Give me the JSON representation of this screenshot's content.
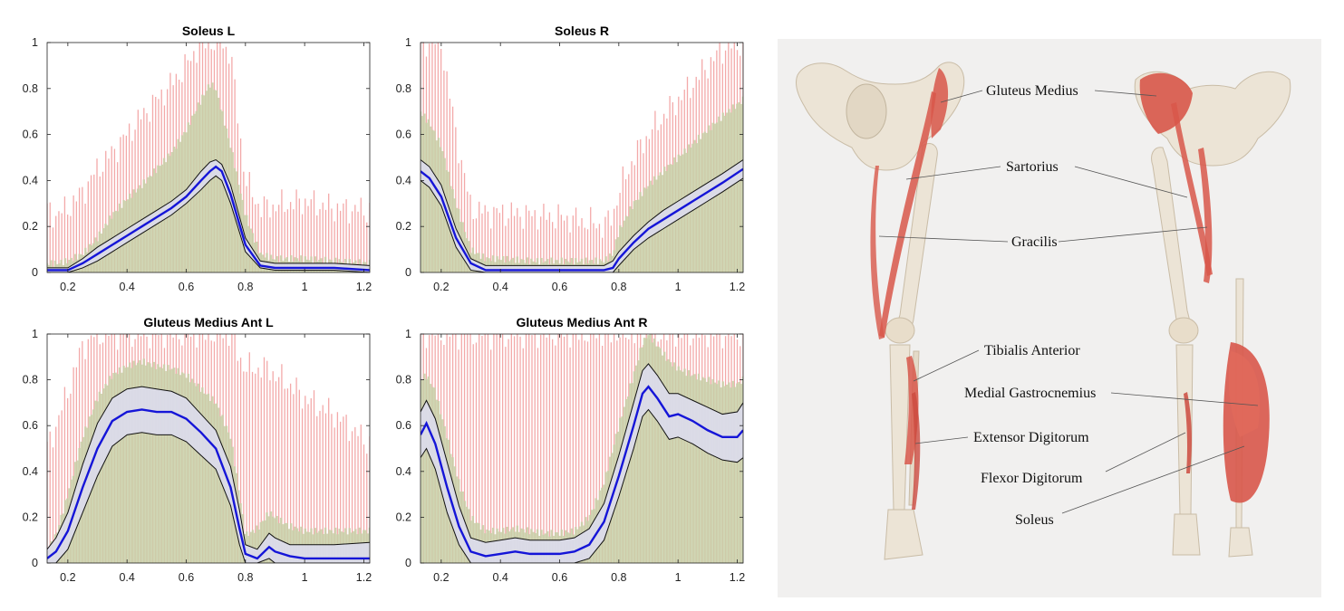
{
  "chart_data": [
    {
      "type": "line",
      "title": "Soleus L",
      "xlim": [
        0.13,
        1.22
      ],
      "ylim": [
        0,
        1
      ],
      "xticks": [
        0.2,
        0.4,
        0.6,
        0.8,
        1,
        1.2
      ],
      "yticks": [
        0,
        0.2,
        0.4,
        0.6,
        0.8,
        1
      ],
      "x": [
        0.13,
        0.16,
        0.2,
        0.25,
        0.3,
        0.35,
        0.4,
        0.45,
        0.5,
        0.55,
        0.6,
        0.65,
        0.68,
        0.7,
        0.72,
        0.75,
        0.8,
        0.85,
        0.9,
        1.0,
        1.1,
        1.22
      ],
      "series": [
        {
          "role": "mean",
          "values": [
            0.01,
            0.01,
            0.01,
            0.04,
            0.08,
            0.12,
            0.16,
            0.2,
            0.24,
            0.28,
            0.33,
            0.4,
            0.44,
            0.46,
            0.44,
            0.34,
            0.12,
            0.03,
            0.02,
            0.02,
            0.02,
            0.01
          ]
        },
        {
          "role": "upper",
          "values": [
            0.02,
            0.02,
            0.02,
            0.06,
            0.11,
            0.15,
            0.19,
            0.23,
            0.27,
            0.31,
            0.36,
            0.44,
            0.48,
            0.49,
            0.47,
            0.38,
            0.15,
            0.05,
            0.04,
            0.04,
            0.04,
            0.03
          ]
        },
        {
          "role": "lower",
          "values": [
            0.0,
            0.0,
            0.0,
            0.02,
            0.05,
            0.09,
            0.13,
            0.17,
            0.21,
            0.25,
            0.3,
            0.36,
            0.4,
            0.42,
            0.4,
            0.3,
            0.09,
            0.02,
            0.01,
            0.01,
            0.01,
            0.0
          ]
        },
        {
          "role": "range",
          "values": [
            0.04,
            0.04,
            0.05,
            0.08,
            0.15,
            0.25,
            0.32,
            0.38,
            0.45,
            0.52,
            0.62,
            0.75,
            0.82,
            0.8,
            0.7,
            0.55,
            0.25,
            0.08,
            0.06,
            0.06,
            0.05,
            0.04
          ]
        },
        {
          "role": "envelope",
          "values": [
            0.27,
            0.25,
            0.28,
            0.35,
            0.45,
            0.52,
            0.6,
            0.68,
            0.75,
            0.82,
            0.9,
            1.0,
            1.0,
            1.0,
            1.0,
            0.95,
            0.4,
            0.28,
            0.29,
            0.31,
            0.28,
            0.27
          ]
        }
      ]
    },
    {
      "type": "line",
      "title": "Soleus R",
      "xlim": [
        0.13,
        1.22
      ],
      "ylim": [
        0,
        1
      ],
      "xticks": [
        0.2,
        0.4,
        0.6,
        0.8,
        1,
        1.2
      ],
      "yticks": [
        0,
        0.2,
        0.4,
        0.6,
        0.8,
        1
      ],
      "x": [
        0.13,
        0.16,
        0.2,
        0.25,
        0.3,
        0.35,
        0.4,
        0.5,
        0.6,
        0.7,
        0.75,
        0.78,
        0.8,
        0.85,
        0.9,
        0.95,
        1.0,
        1.05,
        1.1,
        1.15,
        1.22
      ],
      "series": [
        {
          "role": "mean",
          "values": [
            0.44,
            0.41,
            0.33,
            0.15,
            0.04,
            0.01,
            0.01,
            0.01,
            0.01,
            0.01,
            0.01,
            0.02,
            0.06,
            0.13,
            0.19,
            0.23,
            0.27,
            0.31,
            0.35,
            0.39,
            0.45
          ]
        },
        {
          "role": "upper",
          "values": [
            0.49,
            0.46,
            0.38,
            0.19,
            0.06,
            0.03,
            0.03,
            0.03,
            0.03,
            0.03,
            0.03,
            0.05,
            0.09,
            0.16,
            0.22,
            0.27,
            0.31,
            0.35,
            0.39,
            0.43,
            0.49
          ]
        },
        {
          "role": "lower",
          "values": [
            0.4,
            0.37,
            0.29,
            0.11,
            0.01,
            0.0,
            0.0,
            0.0,
            0.0,
            0.0,
            0.0,
            0.0,
            0.03,
            0.1,
            0.15,
            0.19,
            0.23,
            0.27,
            0.31,
            0.35,
            0.41
          ]
        },
        {
          "role": "range",
          "values": [
            0.7,
            0.65,
            0.55,
            0.3,
            0.1,
            0.06,
            0.06,
            0.05,
            0.05,
            0.05,
            0.05,
            0.08,
            0.18,
            0.3,
            0.38,
            0.44,
            0.5,
            0.56,
            0.62,
            0.68,
            0.75
          ]
        },
        {
          "role": "envelope",
          "values": [
            1.0,
            1.0,
            1.0,
            0.6,
            0.28,
            0.26,
            0.26,
            0.25,
            0.24,
            0.22,
            0.2,
            0.25,
            0.35,
            0.5,
            0.6,
            0.68,
            0.75,
            0.82,
            0.9,
            0.97,
            1.0
          ]
        }
      ]
    },
    {
      "type": "line",
      "title": "Gluteus Medius Ant L",
      "xlim": [
        0.13,
        1.22
      ],
      "ylim": [
        0,
        1
      ],
      "xticks": [
        0.2,
        0.4,
        0.6,
        0.8,
        1,
        1.2
      ],
      "yticks": [
        0,
        0.2,
        0.4,
        0.6,
        0.8,
        1
      ],
      "x": [
        0.13,
        0.16,
        0.2,
        0.25,
        0.3,
        0.35,
        0.4,
        0.45,
        0.5,
        0.55,
        0.6,
        0.65,
        0.7,
        0.75,
        0.78,
        0.8,
        0.84,
        0.88,
        0.9,
        0.95,
        1.0,
        1.1,
        1.22
      ],
      "series": [
        {
          "role": "mean",
          "values": [
            0.02,
            0.05,
            0.14,
            0.33,
            0.5,
            0.62,
            0.66,
            0.67,
            0.66,
            0.66,
            0.63,
            0.57,
            0.5,
            0.33,
            0.15,
            0.04,
            0.02,
            0.07,
            0.05,
            0.03,
            0.02,
            0.02,
            0.02
          ]
        },
        {
          "role": "upper",
          "values": [
            0.06,
            0.11,
            0.22,
            0.43,
            0.61,
            0.72,
            0.76,
            0.77,
            0.76,
            0.75,
            0.72,
            0.65,
            0.58,
            0.42,
            0.23,
            0.08,
            0.06,
            0.13,
            0.11,
            0.08,
            0.08,
            0.08,
            0.09
          ]
        },
        {
          "role": "lower",
          "values": [
            0.0,
            0.0,
            0.06,
            0.22,
            0.38,
            0.51,
            0.56,
            0.57,
            0.56,
            0.56,
            0.53,
            0.47,
            0.41,
            0.25,
            0.08,
            0.0,
            0.0,
            0.02,
            0.0,
            0.0,
            0.0,
            0.0,
            0.0
          ]
        },
        {
          "role": "range",
          "values": [
            0.05,
            0.12,
            0.3,
            0.55,
            0.72,
            0.82,
            0.86,
            0.88,
            0.86,
            0.85,
            0.82,
            0.76,
            0.7,
            0.55,
            0.3,
            0.12,
            0.15,
            0.22,
            0.2,
            0.16,
            0.14,
            0.14,
            0.14
          ]
        },
        {
          "role": "envelope",
          "values": [
            0.5,
            0.6,
            0.75,
            0.95,
            1.0,
            1.0,
            1.0,
            1.0,
            1.0,
            1.0,
            1.0,
            1.0,
            1.0,
            1.0,
            0.9,
            0.85,
            0.85,
            0.85,
            0.82,
            0.78,
            0.72,
            0.65,
            0.52
          ]
        }
      ]
    },
    {
      "type": "line",
      "title": "Gluteus Medius Ant R",
      "xlim": [
        0.13,
        1.22
      ],
      "ylim": [
        0,
        1
      ],
      "xticks": [
        0.2,
        0.4,
        0.6,
        0.8,
        1,
        1.2
      ],
      "yticks": [
        0,
        0.2,
        0.4,
        0.6,
        0.8,
        1
      ],
      "x": [
        0.13,
        0.15,
        0.18,
        0.22,
        0.26,
        0.3,
        0.35,
        0.4,
        0.45,
        0.5,
        0.55,
        0.6,
        0.65,
        0.7,
        0.75,
        0.8,
        0.85,
        0.88,
        0.9,
        0.93,
        0.97,
        1.0,
        1.05,
        1.1,
        1.15,
        1.2,
        1.22
      ],
      "series": [
        {
          "role": "mean",
          "values": [
            0.56,
            0.61,
            0.52,
            0.33,
            0.16,
            0.05,
            0.03,
            0.04,
            0.05,
            0.04,
            0.04,
            0.04,
            0.05,
            0.08,
            0.18,
            0.38,
            0.6,
            0.74,
            0.77,
            0.72,
            0.64,
            0.65,
            0.62,
            0.58,
            0.55,
            0.55,
            0.58
          ]
        },
        {
          "role": "upper",
          "values": [
            0.66,
            0.71,
            0.63,
            0.44,
            0.25,
            0.11,
            0.09,
            0.1,
            0.11,
            0.1,
            0.1,
            0.1,
            0.11,
            0.15,
            0.26,
            0.47,
            0.7,
            0.84,
            0.87,
            0.82,
            0.74,
            0.74,
            0.71,
            0.68,
            0.65,
            0.66,
            0.7
          ]
        },
        {
          "role": "lower",
          "values": [
            0.46,
            0.5,
            0.41,
            0.22,
            0.08,
            0.0,
            0.0,
            0.0,
            0.0,
            0.0,
            0.0,
            0.0,
            0.0,
            0.02,
            0.1,
            0.29,
            0.5,
            0.64,
            0.67,
            0.62,
            0.54,
            0.55,
            0.52,
            0.48,
            0.45,
            0.44,
            0.46
          ]
        },
        {
          "role": "range",
          "values": [
            0.8,
            0.82,
            0.75,
            0.55,
            0.35,
            0.2,
            0.14,
            0.14,
            0.15,
            0.14,
            0.13,
            0.13,
            0.14,
            0.2,
            0.35,
            0.6,
            0.82,
            0.96,
            1.0,
            0.95,
            0.88,
            0.85,
            0.82,
            0.8,
            0.78,
            0.78,
            0.8
          ]
        },
        {
          "role": "envelope",
          "values": [
            1.0,
            1.0,
            1.0,
            1.0,
            1.0,
            1.0,
            1.0,
            1.0,
            1.0,
            1.0,
            1.0,
            1.0,
            1.0,
            1.0,
            1.0,
            1.0,
            1.0,
            1.0,
            1.0,
            1.0,
            1.0,
            1.0,
            1.0,
            1.0,
            1.0,
            1.0,
            1.0
          ]
        }
      ]
    }
  ],
  "colors": {
    "mean_line": "#1515d8",
    "sd_band": "#dcdcec",
    "range_band": "#c8d0a8",
    "envelope_bars": "#f3a9a9",
    "anatomy_background": "#f1f0ef",
    "muscle": "#d8574a",
    "bone": "#ece4d6"
  },
  "anatomy": {
    "labels": [
      "Gluteus Medius",
      "Sartorius",
      "Gracilis",
      "Tibialis Anterior",
      "Medial Gastrocnemius",
      "Extensor Digitorum",
      "Flexor Digitorum",
      "Soleus"
    ]
  }
}
